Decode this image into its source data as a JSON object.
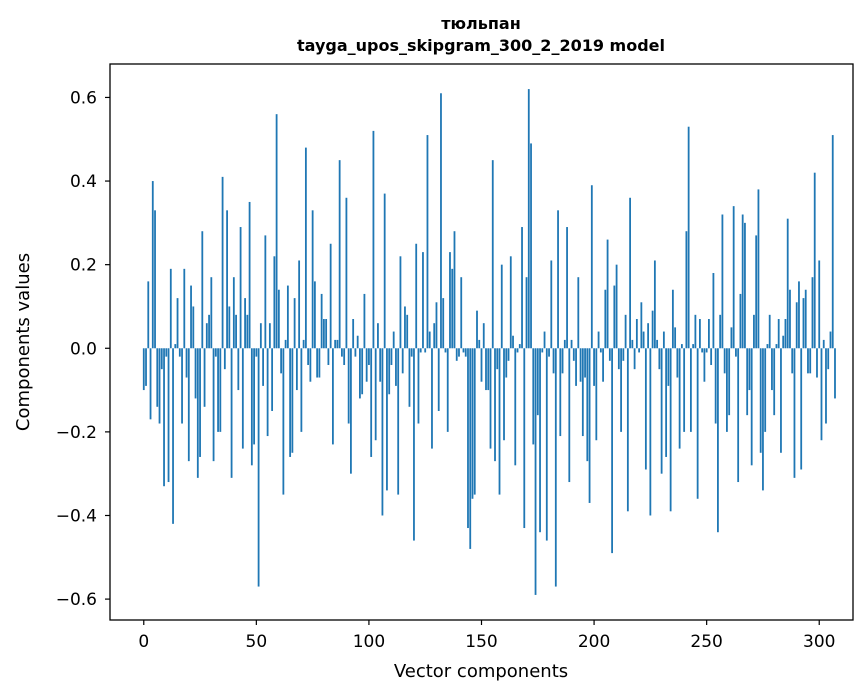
{
  "chart_data": {
    "type": "bar",
    "title_line1": "тюльпан",
    "title_line2": "tayga_upos_skipgram_300_2_2019 model",
    "xlabel": "Vector components",
    "ylabel": "Components values",
    "xlim": [
      -15,
      315
    ],
    "ylim": [
      -0.65,
      0.68
    ],
    "xticks": [
      0,
      50,
      100,
      150,
      200,
      250,
      300
    ],
    "xtick_labels": [
      "0",
      "50",
      "100",
      "150",
      "200",
      "250",
      "300"
    ],
    "yticks": [
      -0.6,
      -0.4,
      -0.2,
      0.0,
      0.2,
      0.4,
      0.6
    ],
    "ytick_labels": [
      "−0.6",
      "−0.4",
      "−0.2",
      "0.0",
      "0.2",
      "0.4",
      "0.6"
    ],
    "color": "#1f77b4",
    "grid": false,
    "values": [
      -0.1,
      -0.09,
      0.16,
      -0.17,
      0.4,
      0.33,
      -0.14,
      -0.18,
      -0.05,
      -0.33,
      -0.02,
      -0.32,
      0.19,
      -0.42,
      0.01,
      0.12,
      -0.02,
      -0.18,
      0.19,
      -0.07,
      -0.27,
      0.15,
      0.1,
      -0.12,
      -0.31,
      -0.26,
      0.28,
      -0.14,
      0.06,
      0.08,
      0.17,
      -0.27,
      -0.02,
      -0.2,
      -0.2,
      0.41,
      -0.05,
      0.33,
      0.1,
      -0.31,
      0.17,
      0.08,
      -0.1,
      0.29,
      -0.24,
      0.12,
      0.08,
      0.35,
      -0.28,
      -0.23,
      -0.02,
      -0.57,
      0.06,
      -0.09,
      0.27,
      -0.21,
      0.06,
      -0.15,
      0.22,
      0.56,
      0.14,
      -0.06,
      -0.35,
      0.02,
      0.15,
      -0.26,
      -0.25,
      0.12,
      -0.1,
      0.21,
      -0.2,
      0.02,
      0.48,
      -0.04,
      -0.08,
      0.33,
      0.16,
      -0.07,
      -0.07,
      0.13,
      0.07,
      0.07,
      -0.04,
      0.25,
      -0.23,
      0.02,
      0.02,
      0.45,
      -0.02,
      -0.04,
      0.36,
      -0.18,
      -0.3,
      0.07,
      -0.02,
      0.03,
      -0.12,
      -0.11,
      0.13,
      -0.08,
      -0.04,
      -0.26,
      0.52,
      -0.22,
      0.06,
      -0.08,
      -0.4,
      0.37,
      -0.34,
      -0.11,
      -0.04,
      0.04,
      -0.09,
      -0.35,
      0.22,
      -0.06,
      0.1,
      0.08,
      -0.14,
      -0.02,
      -0.46,
      0.25,
      -0.18,
      -0.01,
      0.23,
      -0.01,
      0.51,
      0.04,
      -0.24,
      0.06,
      0.11,
      -0.15,
      0.61,
      0.12,
      -0.01,
      -0.2,
      0.23,
      0.19,
      0.28,
      -0.03,
      -0.02,
      0.17,
      -0.01,
      -0.02,
      -0.43,
      -0.48,
      -0.36,
      -0.35,
      0.09,
      0.02,
      -0.08,
      0.06,
      -0.1,
      -0.1,
      -0.24,
      0.45,
      -0.27,
      -0.05,
      -0.35,
      0.2,
      -0.22,
      -0.07,
      -0.03,
      0.22,
      0.03,
      -0.28,
      -0.01,
      0.01,
      0.29,
      -0.43,
      0.17,
      0.62,
      0.49,
      -0.23,
      -0.59,
      -0.16,
      -0.44,
      -0.01,
      0.04,
      -0.46,
      -0.02,
      0.21,
      -0.06,
      -0.57,
      0.33,
      -0.21,
      -0.06,
      0.02,
      0.29,
      -0.32,
      0.02,
      -0.03,
      -0.09,
      0.17,
      -0.08,
      -0.21,
      -0.07,
      -0.27,
      -0.37,
      0.39,
      -0.09,
      -0.22,
      0.04,
      -0.01,
      -0.08,
      0.14,
      0.26,
      -0.03,
      -0.49,
      0.15,
      0.2,
      -0.05,
      -0.2,
      -0.03,
      0.08,
      -0.39,
      0.36,
      0.02,
      -0.05,
      0.07,
      -0.01,
      0.11,
      0.04,
      -0.29,
      0.06,
      -0.4,
      0.09,
      0.21,
      0.02,
      -0.05,
      -0.3,
      0.04,
      -0.26,
      -0.09,
      -0.39,
      0.14,
      0.05,
      -0.07,
      -0.24,
      0.01,
      -0.2,
      0.28,
      0.53,
      -0.2,
      0.01,
      0.08,
      -0.36,
      0.07,
      -0.01,
      -0.08,
      -0.01,
      0.07,
      -0.04,
      0.18,
      -0.18,
      -0.44,
      0.08,
      0.32,
      -0.06,
      -0.2,
      -0.16,
      0.05,
      0.34,
      -0.02,
      -0.32,
      0.13,
      0.32,
      0.3,
      -0.16,
      -0.1,
      -0.28,
      0.08,
      0.27,
      0.38,
      -0.25,
      -0.34,
      -0.2,
      0.01,
      0.08,
      -0.1,
      -0.16,
      0.01,
      0.07,
      -0.25,
      0.03,
      0.07,
      0.31,
      0.14,
      -0.06,
      -0.31,
      0.11,
      0.16,
      -0.29,
      0.12,
      0.14,
      -0.06,
      -0.06,
      0.17,
      0.42,
      -0.07,
      0.21,
      -0.22,
      0.02,
      -0.18,
      -0.05,
      0.04,
      0.51,
      -0.12
    ]
  }
}
